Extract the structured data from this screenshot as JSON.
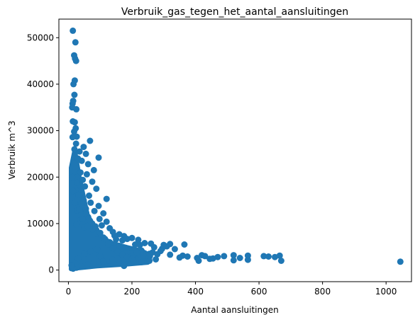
{
  "chart_data": {
    "type": "scatter",
    "title": "Verbruik_gas_tegen_het_aantal_aansluitingen",
    "xlabel": "Aantal aansluitingen",
    "ylabel": "Verbruik m^3",
    "xlim": [
      -30,
      1080
    ],
    "ylim": [
      -2500,
      54000
    ],
    "xticks": [
      0,
      200,
      400,
      600,
      800,
      1000
    ],
    "yticks": [
      0,
      10000,
      20000,
      30000,
      40000,
      50000
    ],
    "grid": false,
    "legend": "none",
    "marker_color": "#1f77b4",
    "series": [
      {
        "points": [
          [
            14,
            51500
          ],
          [
            22,
            49000
          ],
          [
            18,
            46200
          ],
          [
            24,
            45000
          ],
          [
            21,
            45500
          ],
          [
            20,
            40800
          ],
          [
            16,
            40000
          ],
          [
            19,
            37700
          ],
          [
            15,
            36400
          ],
          [
            13,
            35800
          ],
          [
            12,
            35000
          ],
          [
            25,
            34600
          ],
          [
            14,
            32000
          ],
          [
            20,
            31800
          ],
          [
            23,
            30500
          ],
          [
            18,
            29800
          ],
          [
            26,
            28700
          ],
          [
            68,
            27800
          ],
          [
            95,
            24200
          ],
          [
            48,
            26500
          ],
          [
            35,
            25500
          ],
          [
            55,
            25000
          ],
          [
            30,
            24000
          ],
          [
            42,
            23500
          ],
          [
            62,
            22800
          ],
          [
            22,
            22000
          ],
          [
            80,
            21500
          ],
          [
            38,
            21000
          ],
          [
            58,
            20600
          ],
          [
            28,
            20000
          ],
          [
            45,
            19400
          ],
          [
            75,
            19000
          ],
          [
            33,
            18500
          ],
          [
            52,
            18000
          ],
          [
            88,
            17500
          ],
          [
            26,
            17000
          ],
          [
            40,
            16600
          ],
          [
            65,
            16000
          ],
          [
            120,
            15300
          ],
          [
            30,
            15500
          ],
          [
            48,
            15000
          ],
          [
            70,
            14500
          ],
          [
            95,
            13800
          ],
          [
            36,
            14000
          ],
          [
            55,
            13200
          ],
          [
            82,
            12700
          ],
          [
            110,
            12200
          ],
          [
            28,
            12800
          ],
          [
            44,
            12000
          ],
          [
            62,
            11400
          ],
          [
            98,
            11000
          ],
          [
            120,
            10400
          ],
          [
            38,
            10800
          ],
          [
            75,
            10000
          ],
          [
            105,
            9600
          ],
          [
            130,
            9000
          ],
          [
            25,
            9800
          ],
          [
            50,
            9200
          ],
          [
            88,
            8600
          ],
          [
            140,
            8200
          ],
          [
            160,
            7700
          ],
          [
            145,
            7400
          ],
          [
            175,
            7300
          ],
          [
            200,
            6900
          ],
          [
            185,
            6700
          ],
          [
            220,
            6500
          ],
          [
            170,
            6400
          ],
          [
            150,
            6600
          ],
          [
            240,
            5800
          ],
          [
            260,
            5700
          ],
          [
            210,
            5500
          ],
          [
            225,
            5400
          ],
          [
            300,
            5400
          ],
          [
            320,
            5600
          ],
          [
            365,
            5500
          ],
          [
            310,
            5100
          ],
          [
            270,
            4900
          ],
          [
            295,
            4600
          ],
          [
            335,
            4500
          ],
          [
            290,
            4100
          ],
          [
            265,
            3800
          ],
          [
            240,
            3600
          ],
          [
            280,
            3400
          ],
          [
            320,
            3300
          ],
          [
            360,
            3100
          ],
          [
            350,
            2700
          ],
          [
            375,
            2900
          ],
          [
            420,
            3200
          ],
          [
            430,
            3000
          ],
          [
            405,
            2600
          ],
          [
            445,
            2400
          ],
          [
            470,
            2800
          ],
          [
            410,
            2000
          ],
          [
            455,
            2500
          ],
          [
            490,
            3000
          ],
          [
            520,
            3200
          ],
          [
            540,
            2600
          ],
          [
            520,
            2100
          ],
          [
            565,
            2200
          ],
          [
            565,
            3100
          ],
          [
            615,
            3000
          ],
          [
            630,
            2900
          ],
          [
            650,
            2800
          ],
          [
            665,
            3100
          ],
          [
            670,
            2000
          ],
          [
            1045,
            1800
          ],
          [
            180,
            4800
          ],
          [
            230,
            4200
          ],
          [
            200,
            3000
          ],
          [
            215,
            2200
          ],
          [
            175,
            1500
          ],
          [
            190,
            2500
          ],
          [
            250,
            2900
          ],
          [
            160,
            5200
          ],
          [
            130,
            6000
          ],
          [
            110,
            7000
          ],
          [
            90,
            7800
          ],
          [
            75,
            8800
          ],
          [
            60,
            9500
          ],
          [
            45,
            11000
          ],
          [
            35,
            13000
          ],
          [
            20,
            14500
          ],
          [
            15,
            17000
          ],
          [
            12,
            20000
          ],
          [
            17,
            23000
          ],
          [
            19,
            26000
          ],
          [
            24,
            27200
          ],
          [
            13,
            28600
          ],
          [
            27,
            18800
          ],
          [
            32,
            16200
          ],
          [
            42,
            14200
          ],
          [
            56,
            12300
          ],
          [
            68,
            10600
          ],
          [
            85,
            9400
          ],
          [
            100,
            8000
          ],
          [
            115,
            6700
          ],
          [
            125,
            5600
          ],
          [
            140,
            4700
          ],
          [
            155,
            3900
          ],
          [
            170,
            3300
          ],
          [
            185,
            2800
          ],
          [
            200,
            2400
          ],
          [
            120,
            2000
          ],
          [
            80,
            1500
          ],
          [
            60,
            1200
          ],
          [
            40,
            800
          ],
          [
            25,
            500
          ],
          [
            15,
            300
          ],
          [
            10,
            1000
          ],
          [
            30,
            2500
          ],
          [
            50,
            3500
          ],
          [
            70,
            4000
          ],
          [
            90,
            4500
          ],
          [
            100,
            3000
          ],
          [
            110,
            1800
          ],
          [
            140,
            2200
          ],
          [
            160,
            1400
          ],
          [
            175,
            900
          ],
          [
            205,
            1900
          ],
          [
            230,
            1700
          ],
          [
            255,
            2000
          ],
          [
            275,
            2300
          ],
          [
            235,
            3100
          ],
          [
            255,
            3500
          ],
          [
            215,
            3800
          ]
        ]
      }
    ]
  }
}
